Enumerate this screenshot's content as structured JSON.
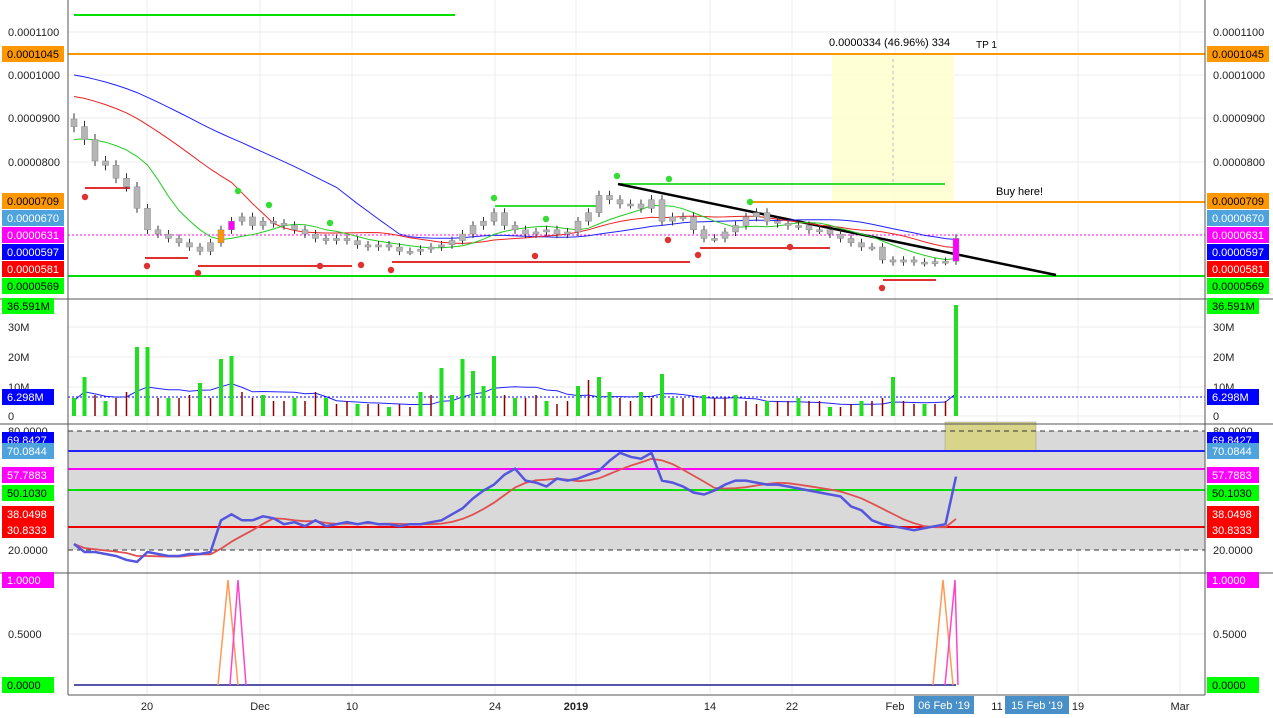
{
  "chart_data": {
    "type": "candlestick",
    "grid": true,
    "x_ticks": [
      "20",
      "Dec",
      "10",
      "24",
      "2019",
      "14",
      "22",
      "Feb",
      "11",
      "19",
      "Mar"
    ],
    "x_highlight_labels": [
      "06 Feb '19",
      "15 Feb '19"
    ],
    "price_pane": {
      "axis_ticks": [
        "0.0001100",
        "0.0001000",
        "0.0000900",
        "0.0000800"
      ],
      "price_labels": [
        {
          "text": "0.0001045",
          "value": 0.0001045,
          "color": "#ff9800"
        },
        {
          "text": "0.0000709",
          "value": 7.09e-05,
          "color": "#ff9800"
        },
        {
          "text": "0.0000670",
          "value": 6.7e-05,
          "color": "#4ea3dc"
        },
        {
          "text": "0.0000631",
          "value": 6.31e-05,
          "color": "#ff00ff"
        },
        {
          "text": "0.0000597",
          "value": 5.97e-05,
          "color": "#0000ff"
        },
        {
          "text": "0.0000581",
          "value": 5.81e-05,
          "color": "#ff0000"
        },
        {
          "text": "0.0000569",
          "value": 5.69e-05,
          "color": "#00ff00"
        }
      ],
      "annotations": {
        "target_box": "0.0000334 (46.96%) 334",
        "tp": "TP 1",
        "buy": "Buy here!"
      },
      "candles_close": [
        8.8e-05,
        8.5e-05,
        8e-05,
        7.9e-05,
        7.6e-05,
        7.4e-05,
        6.9e-05,
        6.4e-05,
        6.3e-05,
        6.2e-05,
        6.1e-05,
        6e-05,
        5.9e-05,
        6.1e-05,
        6.4e-05,
        6.6e-05,
        6.7e-05,
        6.5e-05,
        6.6e-05,
        6.55e-05,
        6.5e-05,
        6.4e-05,
        6.3e-05,
        6.2e-05,
        6.15e-05,
        6.2e-05,
        6.15e-05,
        6.05e-05,
        6e-05,
        6.05e-05,
        6e-05,
        5.9e-05,
        5.9e-05,
        5.95e-05,
        6e-05,
        6.05e-05,
        6.15e-05,
        6.3e-05,
        6.5e-05,
        6.6e-05,
        6.8e-05,
        6.5e-05,
        6.4e-05,
        6.3e-05,
        6.35e-05,
        6.4e-05,
        6.3e-05,
        6.35e-05,
        6.6e-05,
        6.8e-05,
        7.2e-05,
        7.1e-05,
        7e-05,
        7e-05,
        6.9e-05,
        7.1e-05,
        6.6e-05,
        6.7e-05,
        6.7e-05,
        6.4e-05,
        6.2e-05,
        6.2e-05,
        6.35e-05,
        6.5e-05,
        6.7e-05,
        6.8e-05,
        6.6e-05,
        6.55e-05,
        6.5e-05,
        6.5e-05,
        6.4e-05,
        6.4e-05,
        6.3e-05,
        6.2e-05,
        6.1e-05,
        6e-05,
        6e-05,
        5.7e-05,
        5.65e-05,
        5.7e-05,
        5.65e-05,
        5.63e-05,
        5.66e-05,
        5.67e-05,
        6.2e-05
      ]
    },
    "volume_pane": {
      "axis_ticks": [
        "30M",
        "20M",
        "10M",
        "0"
      ],
      "labels": [
        {
          "text": "36.591M",
          "value": 36.591,
          "color": "#00ff00"
        },
        {
          "text": "6.298M",
          "value": 6.298,
          "color": "#0000ff"
        }
      ],
      "values_m": [
        6,
        13,
        7,
        5,
        6,
        8,
        23,
        23,
        6,
        6,
        6,
        7,
        11,
        6,
        19,
        20,
        8,
        6,
        7,
        5,
        5,
        6,
        5,
        8,
        6,
        4,
        5,
        4,
        4,
        4,
        3,
        4,
        3,
        8,
        7,
        16,
        7,
        19,
        15,
        10,
        20,
        7,
        6,
        6,
        7,
        5,
        4,
        5,
        10,
        12,
        13,
        8,
        6,
        5,
        8,
        6,
        14,
        6,
        6,
        6,
        7,
        6,
        6,
        7,
        5,
        4,
        5,
        5,
        5,
        6,
        5,
        5,
        3,
        3,
        4,
        5,
        5,
        6,
        13,
        5,
        4,
        4,
        4,
        5,
        37
      ]
    },
    "rsi_pane": {
      "axis_ticks": [
        "80.0000",
        "20.0000"
      ],
      "labels": [
        {
          "text": "69.8427",
          "value": 69.8427,
          "color": "#0000ff"
        },
        {
          "text": "70.0844",
          "value": 70.0844,
          "color": "#4ea3dc"
        },
        {
          "text": "57.7883",
          "value": 57.7883,
          "color": "#ff00ff"
        },
        {
          "text": "50.1030",
          "value": 50.103,
          "color": "#00ff00"
        },
        {
          "text": "38.0498",
          "value": 38.0498,
          "color": "#ff0000"
        },
        {
          "text": "30.8333",
          "value": 30.8333,
          "color": "#ff0000"
        }
      ],
      "rsi_values": [
        23,
        19,
        19,
        18,
        17,
        15,
        14,
        19,
        18,
        17,
        17,
        18,
        18,
        19,
        35,
        38,
        35,
        35,
        37,
        36,
        33,
        34,
        32,
        35,
        32,
        33,
        34,
        33,
        34,
        33,
        33,
        32,
        33,
        33,
        34,
        35,
        38,
        41,
        46,
        50,
        53,
        58,
        61,
        55,
        54,
        52,
        56,
        55,
        56,
        58,
        60,
        65,
        69,
        67,
        66,
        69,
        55,
        54,
        52,
        49,
        48,
        50,
        53,
        55,
        55,
        54,
        53,
        53,
        52,
        51,
        50,
        49,
        48,
        47,
        42,
        40,
        35,
        33,
        32,
        31,
        30,
        31,
        32,
        33,
        57
      ]
    },
    "signal_pane": {
      "axis_ticks": [
        "1.0000",
        "0.5000",
        "0.0000"
      ],
      "labels": [
        {
          "text": "1.0000",
          "value": 1,
          "color": "#ff00ff"
        },
        {
          "text": "0.0000",
          "value": 0,
          "color": "#00ff00"
        }
      ]
    }
  }
}
